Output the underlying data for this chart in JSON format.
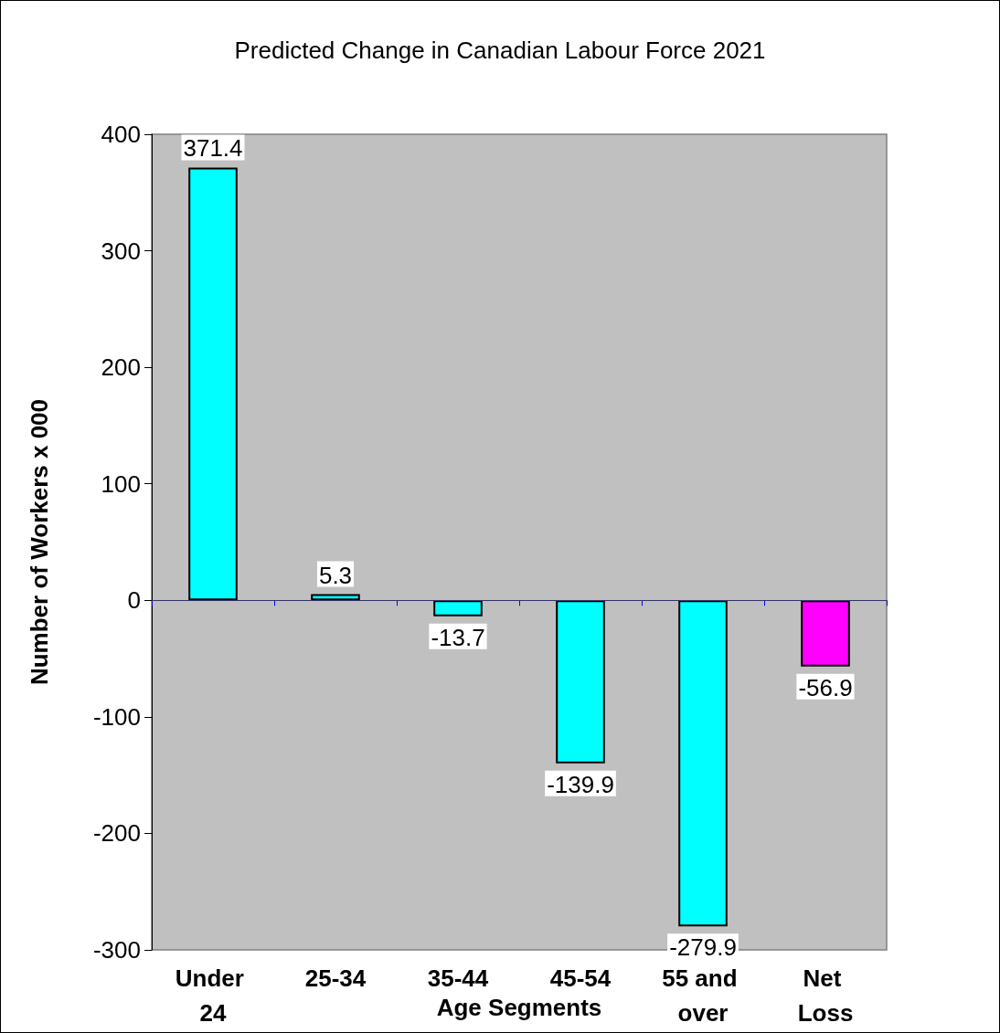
{
  "chart_data": {
    "type": "bar",
    "title": "Predicted Change in Canadian Labour Force 2021",
    "xlabel": "Age Segments",
    "ylabel": "Number of Workers x 000",
    "categories": [
      "Under 24",
      "25-34",
      "35-44",
      "45-54",
      "55 and over",
      "Net Loss"
    ],
    "values": [
      371.4,
      5.3,
      -13.7,
      -139.9,
      -279.9,
      -56.9
    ],
    "colors": [
      "#00ffff",
      "#00ffff",
      "#00ffff",
      "#00ffff",
      "#00ffff",
      "#ff00ff"
    ],
    "ref_lines": [
      {
        "axis": "y",
        "value": 0,
        "color": "#333366"
      }
    ],
    "ylim": [
      -300,
      400
    ],
    "yticks": [
      -300,
      -200,
      -100,
      0,
      100,
      200,
      300,
      400
    ],
    "data_labels": true
  }
}
